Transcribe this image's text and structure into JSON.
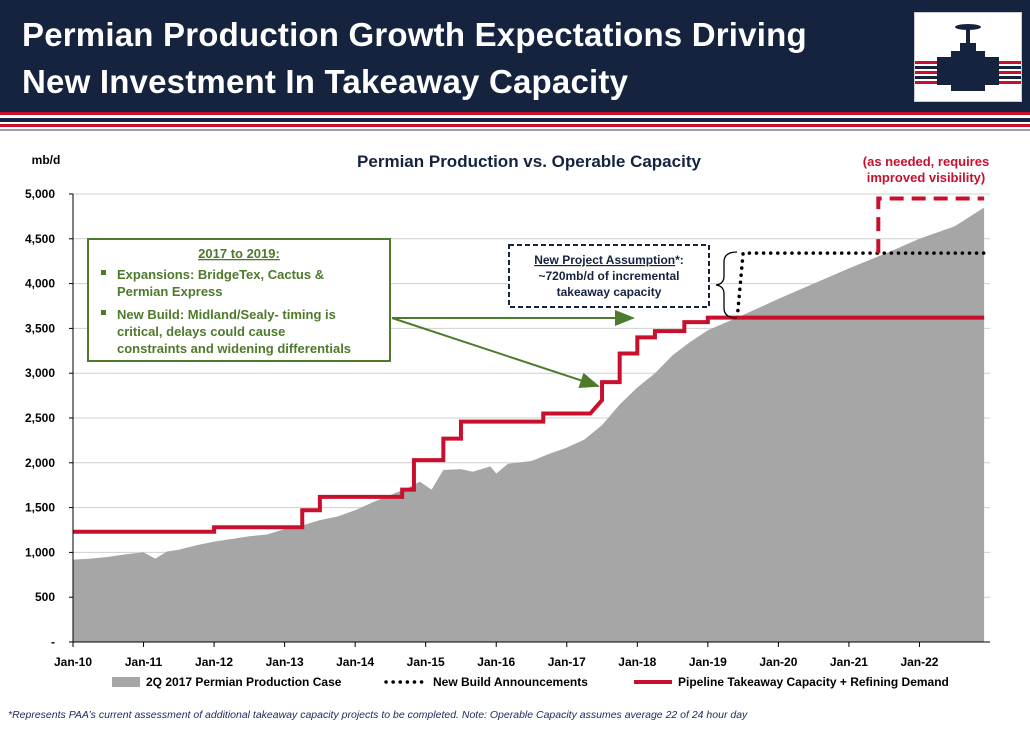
{
  "header": {
    "title_line1": "Permian Production Growth Expectations Driving",
    "title_line2": "New Investment In Takeaway Capacity",
    "logo": "valve-icon"
  },
  "colors": {
    "navy": "#15233f",
    "red": "#c8102e",
    "area_gray": "#a6a6a6",
    "callout_green": "#4d7a2b"
  },
  "chart_data": {
    "type": "area",
    "title": "Permian Production vs. Operable Capacity",
    "ylabel": "mb/d",
    "xlabel": "",
    "ylim": [
      0,
      5000
    ],
    "y_ticks": [
      0,
      500,
      1000,
      1500,
      2000,
      2500,
      3000,
      3500,
      4000,
      4500,
      5000
    ],
    "y_tick_labels": [
      "-",
      "500",
      "1,000",
      "1,500",
      "2,000",
      "2,500",
      "3,000",
      "3,500",
      "4,000",
      "4,500",
      "5,000"
    ],
    "x_tick_labels": [
      "Jan-10",
      "Jan-11",
      "Jan-12",
      "Jan-13",
      "Jan-14",
      "Jan-15",
      "Jan-16",
      "Jan-17",
      "Jan-18",
      "Jan-19",
      "Jan-20",
      "Jan-21",
      "Jan-22"
    ],
    "xlim": [
      "2010-01",
      "2023-01"
    ],
    "grid": true,
    "legend_position": "bottom",
    "series": [
      {
        "name": "2Q 2017 Permian Production Case",
        "kind": "area",
        "color": "#a6a6a6",
        "points": [
          [
            "2010-01",
            920
          ],
          [
            "2010-04",
            930
          ],
          [
            "2010-07",
            950
          ],
          [
            "2010-10",
            980
          ],
          [
            "2011-01",
            1000
          ],
          [
            "2011-03",
            930
          ],
          [
            "2011-05",
            1010
          ],
          [
            "2011-07",
            1030
          ],
          [
            "2011-10",
            1080
          ],
          [
            "2012-01",
            1120
          ],
          [
            "2012-04",
            1150
          ],
          [
            "2012-07",
            1180
          ],
          [
            "2012-10",
            1200
          ],
          [
            "2013-01",
            1260
          ],
          [
            "2013-04",
            1300
          ],
          [
            "2013-07",
            1360
          ],
          [
            "2013-10",
            1400
          ],
          [
            "2014-01",
            1470
          ],
          [
            "2014-04",
            1560
          ],
          [
            "2014-07",
            1640
          ],
          [
            "2014-10",
            1720
          ],
          [
            "2014-12",
            1790
          ],
          [
            "2015-02",
            1700
          ],
          [
            "2015-04",
            1920
          ],
          [
            "2015-07",
            1930
          ],
          [
            "2015-09",
            1900
          ],
          [
            "2015-12",
            1960
          ],
          [
            "2016-01",
            1880
          ],
          [
            "2016-03",
            1990
          ],
          [
            "2016-07",
            2020
          ],
          [
            "2016-10",
            2100
          ],
          [
            "2017-01",
            2170
          ],
          [
            "2017-04",
            2260
          ],
          [
            "2017-07",
            2420
          ],
          [
            "2017-10",
            2650
          ],
          [
            "2018-01",
            2840
          ],
          [
            "2018-04",
            3000
          ],
          [
            "2018-07",
            3200
          ],
          [
            "2018-10",
            3350
          ],
          [
            "2019-01",
            3480
          ],
          [
            "2019-07",
            3650
          ],
          [
            "2020-01",
            3830
          ],
          [
            "2020-07",
            4000
          ],
          [
            "2021-01",
            4170
          ],
          [
            "2021-07",
            4330
          ],
          [
            "2022-01",
            4500
          ],
          [
            "2022-07",
            4640
          ],
          [
            "2022-12",
            4850
          ]
        ]
      },
      {
        "name": "New Build Announcements",
        "kind": "dotted",
        "color": "#000000",
        "points": [
          [
            "2019-06",
            3620
          ],
          [
            "2019-07",
            4340
          ],
          [
            "2022-12",
            4340
          ]
        ]
      },
      {
        "name": "Pipeline Takeaway Capacity + Refining Demand",
        "kind": "step",
        "color": "#c8102e",
        "points": [
          [
            "2010-01",
            1230
          ],
          [
            "2012-01",
            1230
          ],
          [
            "2012-01",
            1280
          ],
          [
            "2013-04",
            1280
          ],
          [
            "2013-04",
            1470
          ],
          [
            "2013-07",
            1470
          ],
          [
            "2013-07",
            1620
          ],
          [
            "2014-09",
            1620
          ],
          [
            "2014-09",
            1700
          ],
          [
            "2014-11",
            1700
          ],
          [
            "2014-11",
            2030
          ],
          [
            "2015-04",
            2030
          ],
          [
            "2015-04",
            2270
          ],
          [
            "2015-07",
            2270
          ],
          [
            "2015-07",
            2460
          ],
          [
            "2016-09",
            2460
          ],
          [
            "2016-09",
            2550
          ],
          [
            "2017-05",
            2550
          ],
          [
            "2017-07",
            2700
          ],
          [
            "2017-07",
            2900
          ],
          [
            "2017-10",
            2900
          ],
          [
            "2017-10",
            3220
          ],
          [
            "2018-01",
            3220
          ],
          [
            "2018-01",
            3400
          ],
          [
            "2018-04",
            3400
          ],
          [
            "2018-04",
            3470
          ],
          [
            "2018-09",
            3470
          ],
          [
            "2018-09",
            3570
          ],
          [
            "2019-01",
            3570
          ],
          [
            "2019-01",
            3620
          ],
          [
            "2022-12",
            3620
          ]
        ]
      },
      {
        "name": "",
        "kind": "dashed-box",
        "color": "#c8102e",
        "points": [
          [
            "2021-06",
            4340
          ],
          [
            "2021-06",
            4950
          ],
          [
            "2022-12",
            4950
          ]
        ]
      }
    ],
    "annotations": {
      "green_box": {
        "title": "2017 to 2019:",
        "items": [
          "Expansions: BridgeTex, Cactus & Permian Express",
          "New Build: Midland/Sealy- timing is critical, delays could cause constraints and widening differentials"
        ]
      },
      "assumption_box": {
        "title": "New Project Assumption",
        "title_suffix": "*:",
        "line1": "~720mb/d of incremental",
        "line2": "takeaway capacity"
      },
      "as_needed": {
        "line1": "(as needed, requires",
        "line2": "improved visibility)"
      }
    }
  },
  "footnote": "*Represents PAA’s current assessment of additional takeaway capacity projects to be completed.  Note: Operable Capacity assumes average 22 of 24 hour day"
}
